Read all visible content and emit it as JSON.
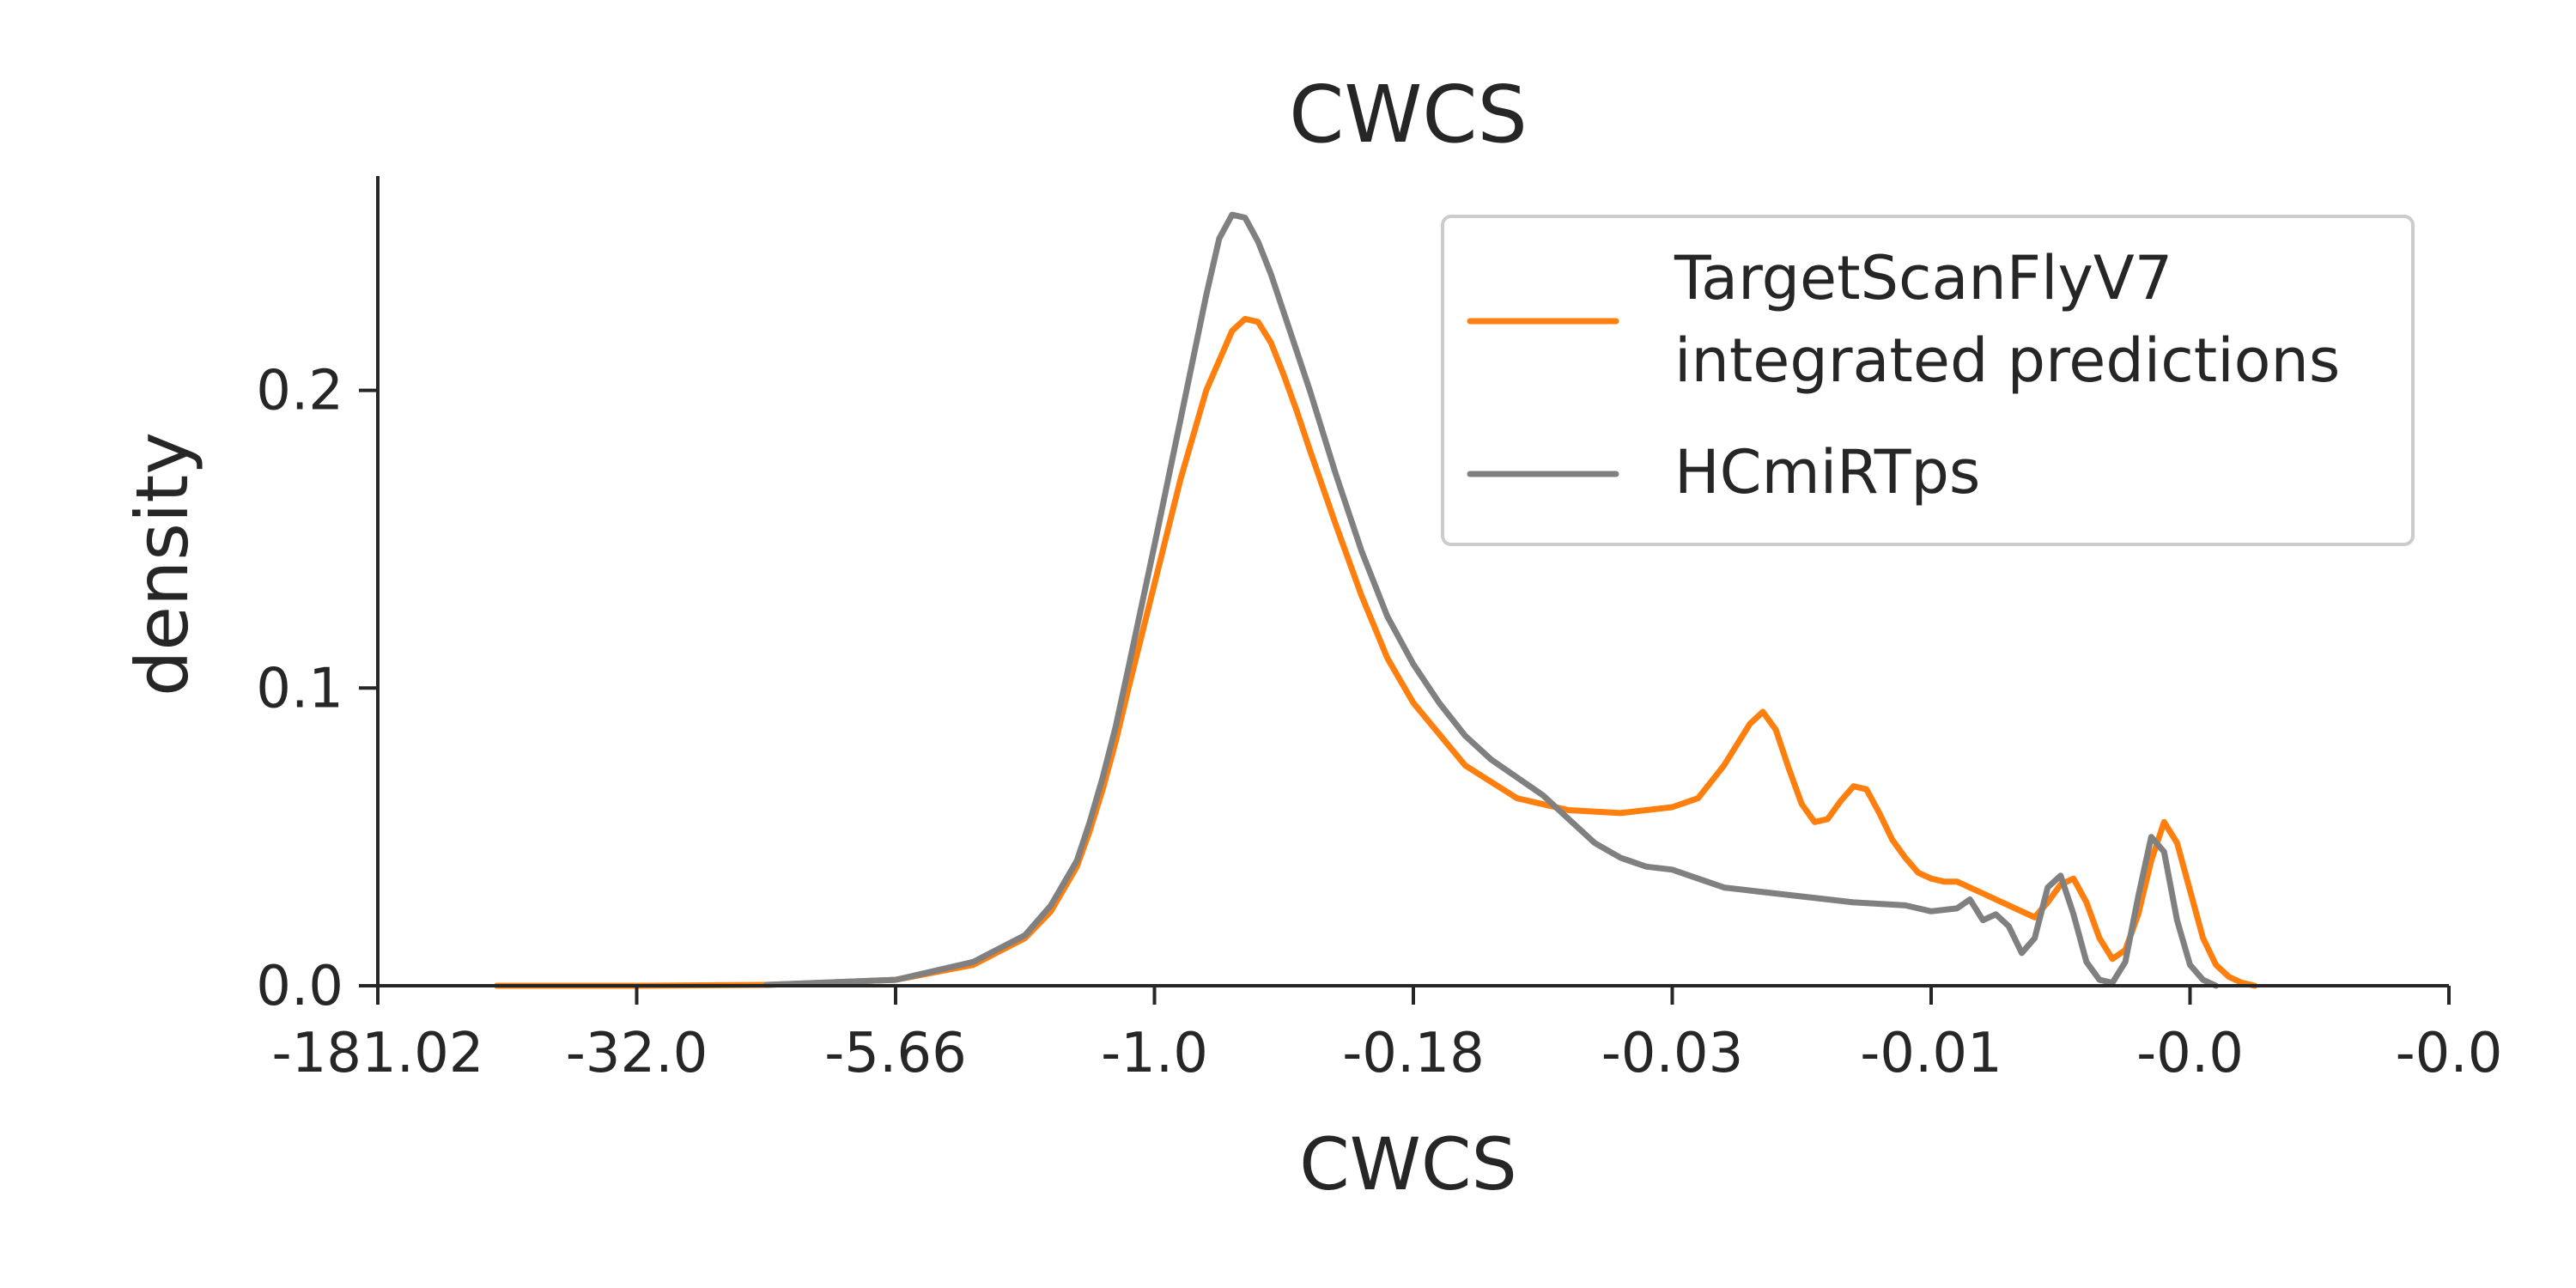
{
  "chart_data": {
    "type": "line",
    "title": "CWCS",
    "xlabel": "CWCS",
    "ylabel": "density",
    "x_ticks": [
      "-181.02",
      "-32.0",
      "-5.66",
      "-1.0",
      "-0.18",
      "-0.03",
      "-0.01",
      "-0.0",
      "-0.0"
    ],
    "x_tick_positions": [
      0,
      1,
      2,
      3,
      4,
      5,
      6,
      7,
      8
    ],
    "xlim": [
      0,
      8
    ],
    "ylim": [
      0,
      0.272
    ],
    "y_ticks": [
      0.0,
      0.1,
      0.2
    ],
    "y_tick_labels": [
      "0.0",
      "0.1",
      "0.2"
    ],
    "grid": false,
    "legend_position": "top-right",
    "series": [
      {
        "name": "TargetScanFlyV7\nintegrated predictions",
        "color": "#ff7f0e",
        "x": [
          0.46,
          1.0,
          1.5,
          2.0,
          2.3,
          2.5,
          2.6,
          2.7,
          2.75,
          2.8,
          2.85,
          2.9,
          3.0,
          3.1,
          3.2,
          3.3,
          3.35,
          3.4,
          3.45,
          3.5,
          3.55,
          3.6,
          3.7,
          3.8,
          3.9,
          4.0,
          4.2,
          4.4,
          4.6,
          4.8,
          5.0,
          5.1,
          5.2,
          5.3,
          5.35,
          5.4,
          5.45,
          5.5,
          5.55,
          5.6,
          5.65,
          5.7,
          5.75,
          5.8,
          5.85,
          5.9,
          5.95,
          6.0,
          6.05,
          6.1,
          6.2,
          6.3,
          6.4,
          6.45,
          6.5,
          6.55,
          6.6,
          6.65,
          6.7,
          6.75,
          6.8,
          6.85,
          6.9,
          6.95,
          7.0,
          7.05,
          7.1,
          7.15,
          7.2,
          7.25
        ],
        "y": [
          0.0,
          0.0,
          0.0003,
          0.002,
          0.007,
          0.016,
          0.025,
          0.04,
          0.052,
          0.066,
          0.082,
          0.1,
          0.135,
          0.17,
          0.2,
          0.22,
          0.224,
          0.223,
          0.216,
          0.205,
          0.193,
          0.18,
          0.155,
          0.131,
          0.11,
          0.095,
          0.074,
          0.063,
          0.059,
          0.058,
          0.06,
          0.063,
          0.074,
          0.088,
          0.092,
          0.086,
          0.073,
          0.061,
          0.055,
          0.056,
          0.062,
          0.067,
          0.066,
          0.058,
          0.049,
          0.043,
          0.038,
          0.036,
          0.035,
          0.035,
          0.031,
          0.027,
          0.023,
          0.028,
          0.034,
          0.036,
          0.028,
          0.016,
          0.009,
          0.012,
          0.024,
          0.042,
          0.055,
          0.048,
          0.032,
          0.016,
          0.007,
          0.003,
          0.001,
          0.0
        ]
      },
      {
        "name": "HCmiRTps",
        "color": "#808080",
        "x": [
          1.5,
          2.0,
          2.3,
          2.5,
          2.6,
          2.7,
          2.75,
          2.8,
          2.85,
          2.9,
          3.0,
          3.1,
          3.2,
          3.25,
          3.3,
          3.35,
          3.4,
          3.45,
          3.5,
          3.6,
          3.7,
          3.8,
          3.9,
          4.0,
          4.1,
          4.2,
          4.3,
          4.4,
          4.5,
          4.6,
          4.7,
          4.8,
          4.9,
          5.0,
          5.1,
          5.2,
          5.3,
          5.5,
          5.7,
          5.9,
          6.0,
          6.1,
          6.15,
          6.2,
          6.25,
          6.3,
          6.35,
          6.4,
          6.45,
          6.5,
          6.55,
          6.6,
          6.65,
          6.7,
          6.75,
          6.8,
          6.85,
          6.9,
          6.95,
          7.0,
          7.05,
          7.1
        ],
        "y": [
          0.0003,
          0.002,
          0.008,
          0.017,
          0.027,
          0.042,
          0.055,
          0.07,
          0.087,
          0.107,
          0.148,
          0.19,
          0.232,
          0.251,
          0.259,
          0.258,
          0.25,
          0.239,
          0.226,
          0.2,
          0.172,
          0.146,
          0.124,
          0.108,
          0.095,
          0.084,
          0.076,
          0.07,
          0.064,
          0.056,
          0.048,
          0.043,
          0.04,
          0.039,
          0.036,
          0.033,
          0.032,
          0.03,
          0.028,
          0.027,
          0.025,
          0.026,
          0.029,
          0.022,
          0.024,
          0.02,
          0.011,
          0.016,
          0.033,
          0.037,
          0.024,
          0.008,
          0.002,
          0.001,
          0.008,
          0.03,
          0.05,
          0.045,
          0.022,
          0.007,
          0.002,
          0.0
        ]
      }
    ]
  }
}
